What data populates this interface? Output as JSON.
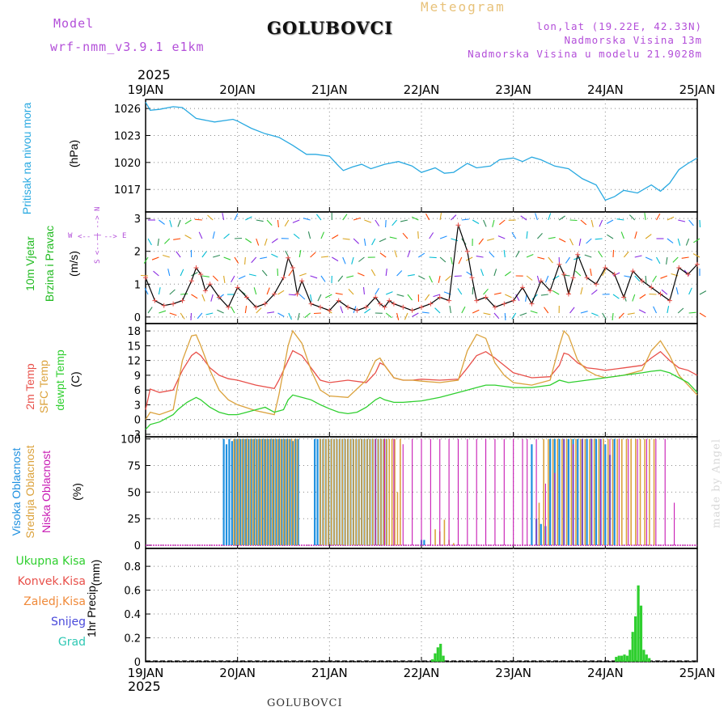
{
  "header": {
    "model_label": "Model",
    "model_name": "wrf-nmm_v3.9.1 e1km",
    "station": "GOLUBOVCI",
    "meteogram": "Meteogram",
    "lonlat": "lon,lat (19.22E, 42.33N)",
    "elevation": "Nadmorska Visina 13m",
    "model_elevation": "Nadmorska Visina u modelu 21.9028m",
    "year": "2025",
    "footer_station": "GOLUBOVCI",
    "credit": "made by Angel"
  },
  "colors": {
    "pressure": "#29a9e1",
    "temp2m": "#e8504a",
    "sfc": "#dba23c",
    "dewpt": "#2fcf2f",
    "cloud_high": "#1e90e0",
    "cloud_mid": "#dba23c",
    "cloud_low": "#c81ab4",
    "precip": "#2fcf2f",
    "wind_label": "#22bb22",
    "purple": "#b34fd9"
  },
  "chart_data": [
    {
      "type": "line",
      "panel": "pressure",
      "ylabel_main": "Pritisak na nivou mora",
      "ylabel_unit": "(hPa)",
      "x_categories": [
        "19JAN",
        "20JAN",
        "21JAN",
        "22JAN",
        "23JAN",
        "24JAN",
        "25JAN"
      ],
      "ylim": [
        1014.5,
        1027
      ],
      "yticks": [
        1017,
        1020,
        1023,
        1026
      ],
      "series": [
        {
          "key": "pressure",
          "x": [
            0,
            0.05,
            0.15,
            0.3,
            0.4,
            0.55,
            0.75,
            0.95,
            1.0,
            1.15,
            1.3,
            1.45,
            1.6,
            1.75,
            1.85,
            2.0,
            2.1,
            2.15,
            2.25,
            2.35,
            2.45,
            2.6,
            2.75,
            2.9,
            3.0,
            3.15,
            3.25,
            3.35,
            3.5,
            3.6,
            3.75,
            3.85,
            4.0,
            4.1,
            4.2,
            4.3,
            4.45,
            4.6,
            4.75,
            4.9,
            5.0,
            5.1,
            5.2,
            5.35,
            5.5,
            5.6,
            5.7,
            5.8,
            5.9,
            6.0
          ],
          "y": [
            1026.7,
            1025.8,
            1025.9,
            1026.2,
            1026.1,
            1024.9,
            1024.5,
            1024.8,
            1024.6,
            1023.8,
            1023.2,
            1022.8,
            1021.9,
            1020.9,
            1020.9,
            1020.7,
            1019.6,
            1019.1,
            1019.5,
            1019.8,
            1019.3,
            1019.8,
            1020.1,
            1019.6,
            1018.9,
            1019.4,
            1018.8,
            1018.9,
            1019.9,
            1019.4,
            1019.6,
            1020.3,
            1020.5,
            1020.1,
            1020.6,
            1020.3,
            1019.6,
            1019.3,
            1018.2,
            1017.5,
            1015.8,
            1016.2,
            1016.9,
            1016.6,
            1017.5,
            1016.8,
            1017.7,
            1019.2,
            1019.9,
            1020.5
          ]
        }
      ]
    },
    {
      "type": "line",
      "panel": "wind",
      "ylabel_main": "10m Vjetar",
      "ylabel_sub": "Brzina i Pravac",
      "ylabel_unit": "(m/s)",
      "compass": {
        "w": "W",
        "e": "E",
        "n": "N",
        "s": "S",
        "arrows": "<-- | -->"
      },
      "ylim": [
        -0.2,
        3.2
      ],
      "yticks": [
        0,
        1,
        2,
        3
      ],
      "series": [
        {
          "key": "wind_speed",
          "x": [
            0,
            0.1,
            0.2,
            0.3,
            0.4,
            0.5,
            0.55,
            0.6,
            0.65,
            0.7,
            0.8,
            0.9,
            1.0,
            1.1,
            1.2,
            1.3,
            1.4,
            1.5,
            1.55,
            1.6,
            1.65,
            1.7,
            1.8,
            1.9,
            2.0,
            2.1,
            2.2,
            2.3,
            2.4,
            2.5,
            2.55,
            2.6,
            2.65,
            2.7,
            2.8,
            2.9,
            3.0,
            3.1,
            3.2,
            3.3,
            3.4,
            3.5,
            3.55,
            3.6,
            3.7,
            3.8,
            3.9,
            4.0,
            4.1,
            4.2,
            4.3,
            4.4,
            4.5,
            4.55,
            4.6,
            4.65,
            4.7,
            4.8,
            4.9,
            5.0,
            5.1,
            5.2,
            5.3,
            5.4,
            5.5,
            5.6,
            5.7,
            5.8,
            5.9,
            6.0
          ],
          "y": [
            1.2,
            0.5,
            0.35,
            0.4,
            0.5,
            1.1,
            1.5,
            1.3,
            0.8,
            1.0,
            0.6,
            0.3,
            0.9,
            0.6,
            0.3,
            0.4,
            0.7,
            1.2,
            1.8,
            1.5,
            0.7,
            1.1,
            0.4,
            0.3,
            0.2,
            0.5,
            0.3,
            0.2,
            0.3,
            0.6,
            0.4,
            0.3,
            0.5,
            0.4,
            0.3,
            0.2,
            0.3,
            0.4,
            0.6,
            0.5,
            2.8,
            2.0,
            1.2,
            0.5,
            0.6,
            0.3,
            0.4,
            0.5,
            0.9,
            0.4,
            1.1,
            0.8,
            1.6,
            1.3,
            0.7,
            1.2,
            1.9,
            1.2,
            1.0,
            1.5,
            1.3,
            0.6,
            1.4,
            1.1,
            0.9,
            0.7,
            0.5,
            1.5,
            1.3,
            1.6
          ]
        }
      ]
    },
    {
      "type": "line",
      "panel": "temperature",
      "ylabel_2m": "2m Temp",
      "ylabel_sfc": "SFC Temp",
      "ylabel_dew": "dewpt Temp",
      "ylabel_unit": "(C)",
      "ylim": [
        -3.5,
        19.5
      ],
      "yticks": [
        -3,
        0,
        3,
        6,
        9,
        12,
        15,
        18
      ],
      "series": [
        {
          "key": "temp2m",
          "x": [
            0,
            0.05,
            0.15,
            0.3,
            0.4,
            0.5,
            0.55,
            0.6,
            0.7,
            0.8,
            0.9,
            1.0,
            1.2,
            1.4,
            1.45,
            1.55,
            1.6,
            1.7,
            1.8,
            1.9,
            2.0,
            2.2,
            2.4,
            2.5,
            2.55,
            2.6,
            2.7,
            2.8,
            2.9,
            3.0,
            3.2,
            3.4,
            3.5,
            3.6,
            3.7,
            3.8,
            3.9,
            4.0,
            4.2,
            4.4,
            4.5,
            4.55,
            4.6,
            4.7,
            4.8,
            4.9,
            5.0,
            5.2,
            5.4,
            5.5,
            5.6,
            5.7,
            5.8,
            5.9,
            6.0
          ],
          "y": [
            2,
            6.2,
            5.5,
            6,
            10,
            13,
            13.7,
            13,
            10.5,
            9,
            8.3,
            8,
            7,
            6.3,
            8,
            12,
            14,
            13,
            10.5,
            8,
            7.5,
            8,
            7.5,
            9.5,
            11.5,
            11,
            8.5,
            8,
            8,
            8.2,
            8,
            8.2,
            10.5,
            13,
            13.8,
            12.5,
            11,
            9.5,
            8.5,
            8.7,
            11,
            13.5,
            13.2,
            11.5,
            10.5,
            10.3,
            10,
            10.5,
            11,
            12.5,
            13.8,
            12,
            10.5,
            10,
            9
          ]
        },
        {
          "key": "sfc",
          "x": [
            0,
            0.05,
            0.15,
            0.3,
            0.4,
            0.5,
            0.55,
            0.6,
            0.7,
            0.8,
            0.9,
            1.0,
            1.2,
            1.4,
            1.45,
            1.55,
            1.6,
            1.7,
            1.8,
            1.9,
            2.0,
            2.2,
            2.4,
            2.5,
            2.55,
            2.6,
            2.7,
            2.8,
            2.9,
            3.0,
            3.2,
            3.4,
            3.5,
            3.6,
            3.7,
            3.8,
            3.9,
            4.0,
            4.2,
            4.4,
            4.5,
            4.55,
            4.6,
            4.7,
            4.8,
            4.9,
            5.0,
            5.2,
            5.4,
            5.5,
            5.6,
            5.7,
            5.8,
            5.9,
            6.0
          ],
          "y": [
            0,
            1.5,
            1,
            2,
            12,
            17,
            17.2,
            15,
            10,
            6,
            4,
            3,
            1.8,
            1,
            5,
            15,
            18,
            15.5,
            10,
            6,
            4.8,
            4.5,
            8,
            12,
            12.5,
            11,
            8.5,
            8,
            8,
            7.8,
            7.5,
            8,
            14,
            17.3,
            16.5,
            11.5,
            9,
            7.5,
            7,
            8,
            15,
            18,
            17,
            12,
            10,
            9,
            8.5,
            9,
            10,
            14,
            16,
            13,
            9,
            7,
            5
          ]
        },
        {
          "key": "dewpt",
          "x": [
            0,
            0.05,
            0.15,
            0.3,
            0.35,
            0.45,
            0.55,
            0.6,
            0.7,
            0.8,
            0.9,
            1.0,
            1.1,
            1.2,
            1.3,
            1.4,
            1.5,
            1.55,
            1.6,
            1.7,
            1.8,
            1.9,
            2.0,
            2.1,
            2.2,
            2.3,
            2.4,
            2.5,
            2.55,
            2.6,
            2.7,
            2.8,
            3.0,
            3.2,
            3.4,
            3.5,
            3.6,
            3.7,
            3.8,
            4.0,
            4.2,
            4.4,
            4.5,
            4.6,
            4.8,
            5.0,
            5.2,
            5.4,
            5.5,
            5.6,
            5.7,
            5.8,
            5.9,
            6.0
          ],
          "y": [
            -2,
            -1,
            -0.5,
            1,
            2,
            3.5,
            4.5,
            4,
            2.5,
            1.5,
            1,
            1,
            1.5,
            2,
            2.5,
            1.5,
            2,
            4,
            5,
            4.5,
            4,
            3,
            2.2,
            1.5,
            1.2,
            1.5,
            2.5,
            4,
            4.5,
            4,
            3.5,
            3.5,
            3.8,
            4.5,
            5.5,
            6,
            6.5,
            7,
            7,
            6.5,
            6.5,
            7,
            8,
            7.5,
            8,
            8.5,
            9,
            9.5,
            9.8,
            10,
            9.5,
            8.5,
            7.5,
            5.5
          ]
        }
      ]
    },
    {
      "type": "bar",
      "panel": "clouds",
      "ylabel_high": "Visoka Oblacnost",
      "ylabel_mid": "Srednja Oblacnost",
      "ylabel_low": "Niska Oblacnost",
      "ylabel_unit": "(%)",
      "ylim": [
        -3,
        102
      ],
      "yticks": [
        0,
        25,
        50,
        75,
        100
      ],
      "high_x": [
        0.85,
        0.88,
        0.91,
        0.94,
        0.97,
        1.0,
        1.03,
        1.06,
        1.09,
        1.12,
        1.15,
        1.18,
        1.21,
        1.24,
        1.27,
        1.3,
        1.33,
        1.36,
        1.39,
        1.42,
        1.45,
        1.48,
        1.51,
        1.54,
        1.57,
        1.6,
        1.63,
        1.66,
        1.84,
        1.87,
        1.9,
        1.93,
        1.96,
        1.99,
        2.02,
        2.05,
        2.08,
        2.11,
        2.14,
        2.17,
        2.2,
        2.23,
        2.26,
        2.29,
        2.32,
        2.35,
        2.38,
        2.41,
        2.44,
        2.47,
        2.5,
        2.53,
        2.56,
        2.59,
        2.62,
        3.0,
        3.03,
        4.2,
        4.25,
        4.3,
        4.35,
        4.4,
        4.45,
        4.5,
        4.55,
        4.6,
        4.65,
        4.7,
        4.75,
        4.8,
        4.85,
        4.9,
        4.95,
        5.0,
        5.05,
        5.1
      ],
      "high_y": [
        100,
        95,
        100,
        98,
        100,
        100,
        100,
        100,
        100,
        100,
        100,
        100,
        100,
        100,
        100,
        100,
        100,
        100,
        100,
        100,
        100,
        100,
        100,
        100,
        100,
        98,
        100,
        100,
        100,
        100,
        100,
        100,
        100,
        100,
        100,
        100,
        100,
        100,
        100,
        100,
        100,
        100,
        100,
        100,
        100,
        100,
        100,
        100,
        100,
        100,
        100,
        100,
        100,
        100,
        100,
        5,
        5,
        95,
        25,
        20,
        18,
        100,
        100,
        100,
        100,
        100,
        100,
        100,
        100,
        100,
        100,
        100,
        100,
        95,
        85,
        100
      ],
      "mid_x": [
        0.96,
        0.99,
        1.02,
        1.05,
        1.08,
        1.11,
        1.14,
        1.17,
        1.2,
        1.23,
        1.26,
        1.29,
        1.32,
        1.35,
        1.38,
        1.41,
        1.44,
        1.47,
        1.5,
        1.53,
        1.56,
        1.59,
        1.62,
        1.65,
        1.9,
        1.93,
        1.96,
        1.99,
        2.02,
        2.05,
        2.08,
        2.11,
        2.14,
        2.17,
        2.2,
        2.23,
        2.26,
        2.29,
        2.32,
        2.35,
        2.38,
        2.41,
        2.44,
        2.47,
        2.5,
        2.53,
        2.56,
        2.59,
        2.62,
        2.65,
        2.68,
        2.71,
        2.74,
        2.77,
        3.15,
        3.2,
        3.25,
        3.3,
        3.35,
        4.28,
        4.33,
        4.38,
        4.43,
        4.48,
        4.53,
        4.58,
        4.63,
        4.68,
        4.73,
        4.78,
        4.83,
        4.88,
        4.93,
        4.98,
        5.03,
        5.08,
        5.13,
        5.18,
        5.23,
        5.28,
        5.33,
        5.38,
        5.43,
        5.48,
        5.53
      ],
      "mid_y": [
        100,
        100,
        100,
        100,
        100,
        100,
        100,
        100,
        100,
        100,
        100,
        100,
        100,
        100,
        100,
        100,
        100,
        100,
        100,
        100,
        100,
        100,
        100,
        100,
        100,
        100,
        100,
        100,
        100,
        100,
        100,
        100,
        100,
        100,
        100,
        100,
        100,
        100,
        100,
        100,
        100,
        100,
        100,
        100,
        100,
        100,
        100,
        100,
        100,
        100,
        100,
        100,
        50,
        100,
        15,
        13,
        24,
        5,
        2,
        40,
        100,
        100,
        100,
        100,
        100,
        100,
        100,
        100,
        100,
        100,
        100,
        100,
        100,
        100,
        100,
        100,
        100,
        100,
        100,
        100,
        100,
        100,
        100,
        100,
        100
      ],
      "low_x": [
        2.5,
        2.6,
        2.7,
        2.8,
        2.9,
        3.0,
        3.1,
        3.2,
        3.3,
        3.4,
        3.5,
        3.6,
        3.7,
        3.8,
        3.9,
        4.0,
        4.1,
        4.15,
        4.25,
        4.35,
        4.45,
        4.55,
        4.65,
        4.75,
        4.85,
        4.95,
        5.05,
        5.15,
        5.25,
        5.35,
        5.45,
        5.55,
        5.65,
        5.75
      ],
      "low_y": [
        100,
        100,
        100,
        95,
        100,
        100,
        100,
        100,
        100,
        100,
        100,
        100,
        100,
        100,
        100,
        100,
        100,
        100,
        100,
        58,
        68,
        100,
        95,
        100,
        100,
        100,
        100,
        100,
        100,
        100,
        100,
        100,
        100,
        40
      ]
    },
    {
      "type": "bar",
      "panel": "precip",
      "ylabel_main": "1hr Precip",
      "ylabel_unit": "(mm)",
      "legend": [
        "Ukupna Kisa",
        "Konvek.Kisa",
        "Zaledj.Kisa",
        "Snijeg",
        "Grad"
      ],
      "legend_colors": [
        "#2fcf2f",
        "#e8504a",
        "#f08a3a",
        "#4a4adb",
        "#2fc8b4"
      ],
      "ylim": [
        0,
        0.95
      ],
      "yticks": [
        0,
        0.2,
        0.4,
        0.6,
        0.8
      ],
      "x": [
        3.12,
        3.15,
        3.18,
        3.21,
        3.24,
        5.12,
        5.15,
        5.18,
        5.21,
        5.24,
        5.27,
        5.3,
        5.33,
        5.36,
        5.39,
        5.42,
        5.45,
        5.48
      ],
      "y": [
        0.02,
        0.07,
        0.12,
        0.15,
        0.05,
        0.04,
        0.05,
        0.05,
        0.06,
        0.05,
        0.1,
        0.25,
        0.38,
        0.64,
        0.47,
        0.1,
        0.06,
        0.03
      ]
    }
  ]
}
